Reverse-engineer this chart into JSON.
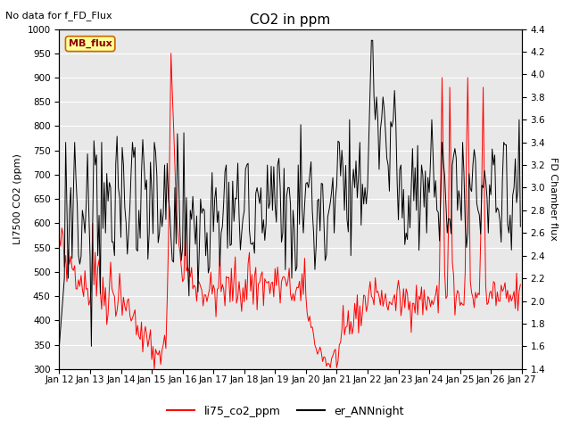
{
  "title": "CO2 in ppm",
  "top_left_text": "No data for f_FD_Flux",
  "annotation_box": "MB_flux",
  "xlabel_ticks": [
    "Jan 12",
    "Jan 13",
    "Jan 14",
    "Jan 15",
    "Jan 16",
    "Jan 17",
    "Jan 18",
    "Jan 19",
    "Jan 20",
    "Jan 21",
    "Jan 22",
    "Jan 23",
    "Jan 24",
    "Jan 25",
    "Jan 26",
    "Jan 27"
  ],
  "yleft_label": "LI7500 CO2 (ppm)",
  "yright_label": "FD Chamber flux",
  "yleft_lim": [
    300,
    1000
  ],
  "yright_lim": [
    1.4,
    4.4
  ],
  "yleft_ticks": [
    300,
    350,
    400,
    450,
    500,
    550,
    600,
    650,
    700,
    750,
    800,
    850,
    900,
    950,
    1000
  ],
  "yright_ticks": [
    1.4,
    1.6,
    1.8,
    2.0,
    2.2,
    2.4,
    2.6,
    2.8,
    3.0,
    3.2,
    3.4,
    3.6,
    3.8,
    4.0,
    4.2,
    4.4
  ],
  "red_color": "#ff0000",
  "black_color": "#000000",
  "bg_color": "#e8e8e8",
  "legend_red": "li75_co2_ppm",
  "legend_black": "er_ANNnight",
  "title_fontsize": 11,
  "label_fontsize": 8,
  "tick_fontsize": 7.5,
  "annot_fontsize": 8
}
